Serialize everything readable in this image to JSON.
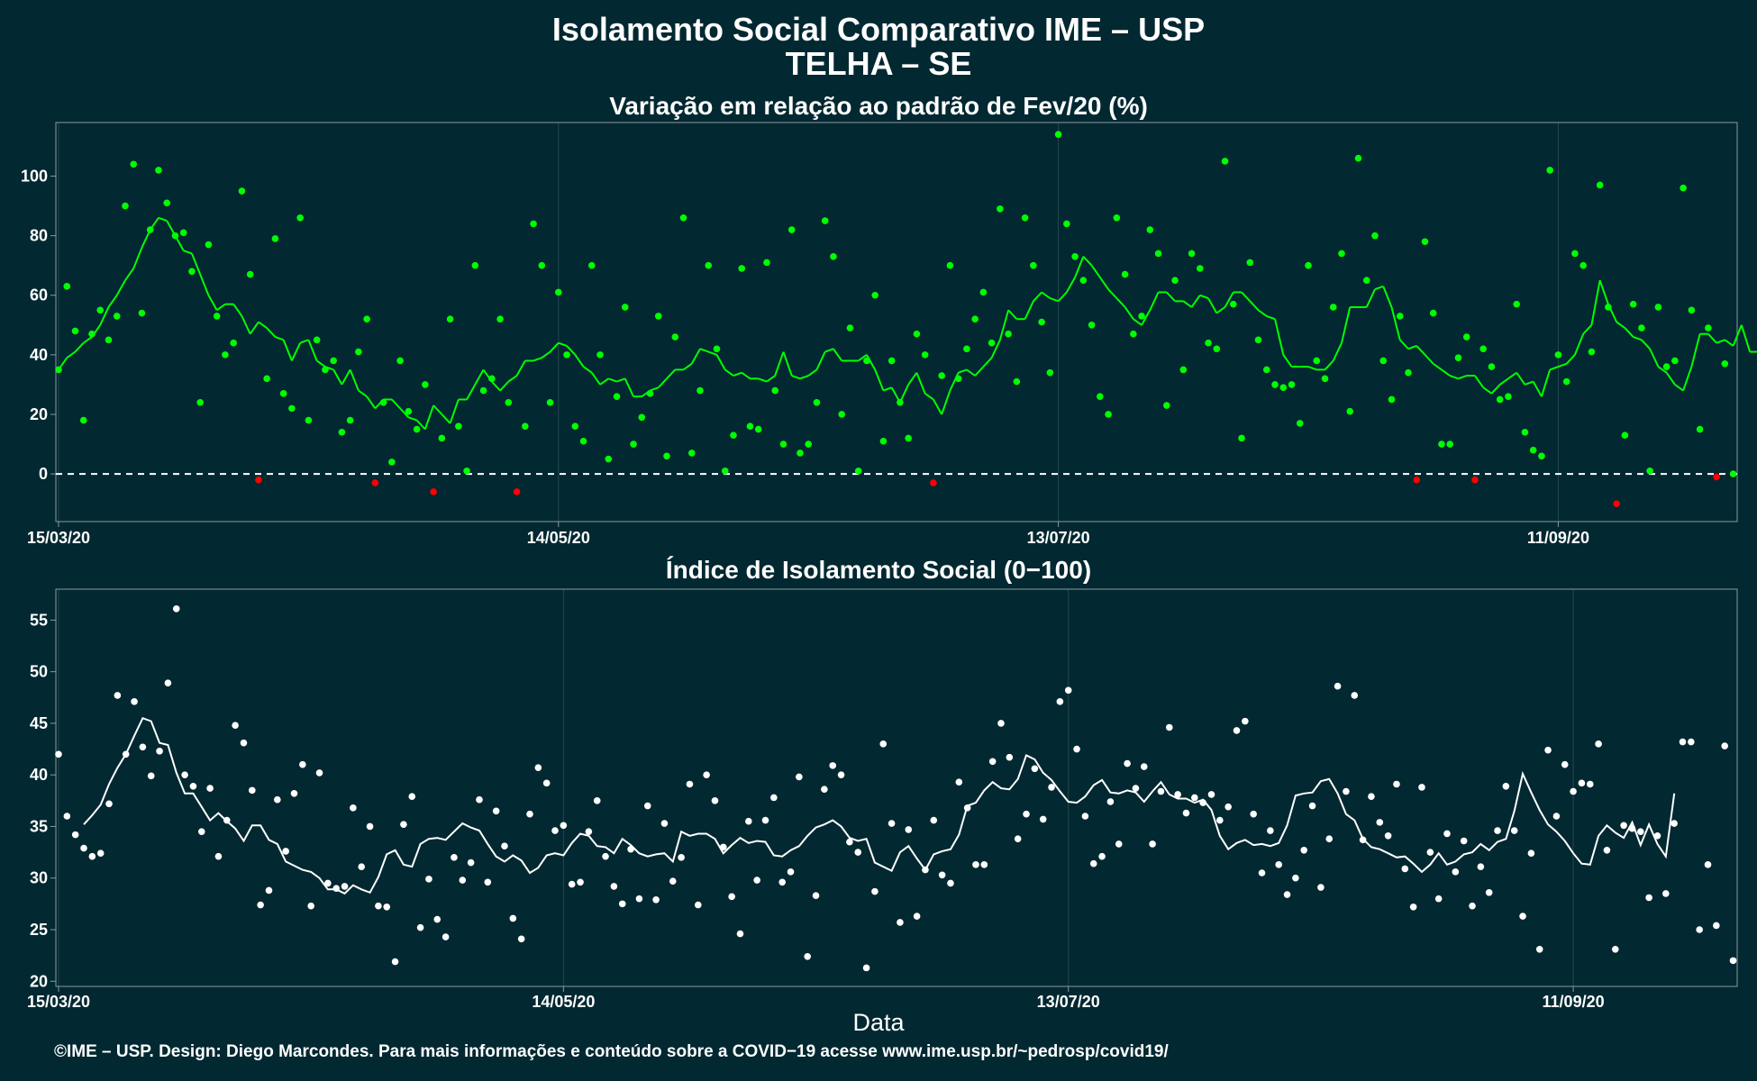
{
  "title_line1": "Isolamento Social Comparativo IME – USP",
  "title_line2": "TELHA – SE",
  "xlabel": "Data",
  "footer": "©IME – USP. Design: Diego Marcondes. Para mais informações e conteúdo sobre a COVID−19 acesse www.ime.usp.br/~pedrosp/covid19/",
  "colors": {
    "background": "#022831",
    "positive": "#00ff00",
    "negative": "#ff0000",
    "index": "#ffffff",
    "grid": "#27474f"
  },
  "chart_data": [
    {
      "type": "scatter",
      "title": "Variação em relação ao padrão de Fev/20 (%)",
      "x_start": "2020-03-15",
      "x_ticks": [
        "15/03/20",
        "14/05/20",
        "13/07/20",
        "11/09/20"
      ],
      "ylim": [
        -16,
        118
      ],
      "y_ticks": [
        0,
        20,
        40,
        60,
        80,
        100
      ],
      "reference_line": 0,
      "grid": true,
      "series": [
        {
          "values": [
            35,
            63,
            48,
            18,
            47,
            55,
            45,
            53,
            90,
            104,
            54,
            82,
            102,
            91,
            80,
            81,
            68,
            24,
            77,
            53,
            40,
            44,
            95,
            67,
            -2,
            32,
            79,
            27,
            22,
            86,
            18,
            45,
            35,
            38,
            14,
            18,
            41,
            52,
            -3,
            24,
            4,
            38,
            21,
            15,
            30,
            -6,
            12,
            52,
            16,
            1,
            70,
            28,
            32,
            52,
            24,
            -6,
            16,
            84,
            70,
            24,
            61,
            40,
            16,
            11,
            70,
            40,
            5,
            26,
            56,
            10,
            19,
            27,
            53,
            6,
            46,
            86,
            7,
            28,
            70,
            42,
            1,
            13,
            69,
            16,
            15,
            71,
            28,
            10,
            82,
            7,
            10,
            24,
            85,
            73,
            20,
            49,
            1,
            38,
            60,
            11,
            38,
            24,
            12,
            47,
            40,
            -3,
            33,
            70,
            32,
            42,
            52,
            61,
            44,
            89,
            47,
            31,
            86,
            70,
            51,
            34,
            114,
            84,
            73,
            65,
            50,
            26,
            20,
            86,
            67,
            47,
            53,
            82,
            74,
            23,
            65,
            35,
            74,
            69,
            44,
            42,
            105,
            57,
            12,
            71,
            45,
            35,
            30,
            29,
            30,
            17,
            70,
            38,
            32,
            56,
            74,
            21,
            106,
            65,
            80,
            38,
            25,
            53,
            34,
            -2,
            78,
            54,
            10,
            10,
            39,
            46,
            -2,
            42,
            36,
            25,
            26,
            57,
            14,
            8,
            6,
            102,
            40,
            31,
            74,
            70,
            41,
            97,
            56,
            -10,
            13,
            57,
            49,
            1,
            56,
            36,
            38,
            96,
            55,
            15,
            49,
            -1,
            37,
            0
          ]
        },
        {
          "values": [
            35,
            39,
            41,
            44,
            46,
            50,
            56,
            60,
            65,
            69,
            76,
            82,
            86,
            85,
            80,
            75,
            74,
            67,
            60,
            55,
            57,
            57,
            53,
            47,
            51,
            49,
            46,
            45,
            38,
            44,
            45,
            38,
            36,
            35,
            30,
            35,
            28,
            26,
            22,
            25,
            25,
            22,
            19,
            18,
            15,
            23,
            20,
            17,
            25,
            25,
            30,
            35,
            31,
            28,
            31,
            33,
            38,
            38,
            39,
            41,
            44,
            43,
            40,
            36,
            34,
            30,
            32,
            31,
            32,
            26,
            26,
            28,
            29,
            32,
            35,
            35,
            37,
            42,
            41,
            40,
            35,
            33,
            34,
            32,
            32,
            31,
            33,
            41,
            33,
            32,
            33,
            35,
            41,
            42,
            38,
            38,
            38,
            40,
            35,
            28,
            29,
            24,
            30,
            34,
            27,
            25,
            20,
            28,
            34,
            35,
            33,
            36,
            39,
            45,
            55,
            52,
            52,
            58,
            61,
            59,
            58,
            61,
            66,
            73,
            70,
            66,
            62,
            59,
            56,
            52,
            50,
            55,
            61,
            61,
            58,
            58,
            56,
            60,
            59,
            54,
            56,
            61,
            61,
            58,
            55,
            53,
            52,
            40,
            36,
            36,
            36,
            35,
            35,
            38,
            44,
            56,
            56,
            56,
            62,
            63,
            56,
            45,
            42,
            43,
            40,
            37,
            35,
            33,
            32,
            33,
            33,
            29,
            27,
            30,
            32,
            34,
            30,
            31,
            26,
            35,
            36,
            37,
            40,
            47,
            50,
            65,
            57,
            51,
            49,
            46,
            45,
            42,
            36,
            34,
            30,
            28,
            36,
            47,
            47,
            44,
            45,
            43,
            50,
            41,
            41,
            36
          ]
        }
      ]
    },
    {
      "type": "scatter",
      "title": "Índice de Isolamento Social (0−100)",
      "x_start": "2020-03-15",
      "x_ticks": [
        "15/03/20",
        "14/05/20",
        "13/07/20",
        "11/09/20"
      ],
      "ylim": [
        19.5,
        58
      ],
      "y_ticks": [
        20,
        25,
        30,
        35,
        40,
        45,
        50,
        55
      ],
      "grid": true,
      "series": [
        {
          "values": [
            42,
            36,
            34.2,
            32.9,
            32.1,
            32.4,
            37.2,
            47.7,
            42,
            47.1,
            42.7,
            39.9,
            42.3,
            48.9,
            56.1,
            40,
            38.9,
            34.5,
            38.7,
            32.1,
            35.6,
            44.8,
            43.1,
            38.5,
            27.4,
            28.8,
            37.6,
            32.6,
            38.2,
            41,
            27.3,
            40.2,
            29.5,
            29,
            29.2,
            36.8,
            31.1,
            35,
            27.3,
            27.2,
            21.9,
            35.2,
            37.9,
            25.2,
            29.9,
            26,
            24.3,
            32,
            29.8,
            31.5,
            37.6,
            29.6,
            36.5,
            33.1,
            26.1,
            24.1,
            36.2,
            40.7,
            39.2,
            34.6,
            35.1,
            29.4,
            29.6,
            34.5,
            37.5,
            32.1,
            29.2,
            27.5,
            32.8,
            28,
            37,
            27.9,
            35.3,
            29.7,
            32,
            39.1,
            27.4,
            40,
            37.5,
            33,
            28.2,
            24.6,
            35.5,
            29.8,
            35.6,
            37.8,
            29.6,
            30.6,
            39.8,
            22.4,
            28.3,
            38.6,
            40.9,
            40,
            33.5,
            32.5,
            21.3,
            28.7,
            43,
            35.3,
            25.7,
            34.7,
            26.3,
            30.8,
            35.6,
            30.3,
            29.5,
            39.3,
            36.8,
            31.3,
            31.3,
            41.3,
            45,
            41.7,
            33.8,
            36.2,
            40.6,
            35.7,
            38.8,
            47.1,
            48.2,
            42.5,
            36,
            31.4,
            32.1,
            37.4,
            33.3,
            41.1,
            38.7,
            40.8,
            33.3,
            38.4,
            44.6,
            38.1,
            36.3,
            37.8,
            37.3,
            38.1,
            35.6,
            36.9,
            44.3,
            45.2,
            36.2,
            30.5,
            34.6,
            31.3,
            28.4,
            30,
            32.7,
            37,
            29.1,
            33.8,
            48.6,
            38.4,
            47.7,
            33.7,
            37.9,
            35.4,
            34.1,
            39.1,
            30.9,
            27.2,
            38.8,
            32.5,
            28,
            34.3,
            30.6,
            33.6,
            27.3,
            31.1,
            28.6,
            34.6,
            38.9,
            34.6,
            26.3,
            32.4,
            23.1,
            42.4,
            36,
            41,
            38.4,
            39.2,
            39.1,
            43,
            32.7,
            23.1,
            35.1,
            34.8,
            34.5,
            28.1,
            34.1,
            28.5,
            35.3,
            43.2,
            43.2,
            25,
            31.3,
            25.4,
            42.8,
            22
          ]
        },
        {
          "values": [
            null,
            null,
            null,
            35.2,
            36.1,
            37.1,
            39.1,
            40.7,
            42,
            43.8,
            45.5,
            45.2,
            43.1,
            42.9,
            40.2,
            38.2,
            38.2,
            36.9,
            35.6,
            36.3,
            35.5,
            34.8,
            33.6,
            35.1,
            35.1,
            33.7,
            33.3,
            31.6,
            31.2,
            30.8,
            30.6,
            30,
            28.9,
            28.9,
            28.5,
            29.3,
            28.9,
            28.6,
            30.1,
            32.3,
            32.7,
            31.3,
            31.1,
            33.3,
            33.8,
            33.9,
            33.7,
            34.5,
            35.3,
            34.9,
            34.6,
            33.3,
            32.1,
            31.6,
            32.2,
            31.7,
            30.5,
            31,
            32.2,
            32.4,
            32.2,
            33.4,
            34.3,
            34.1,
            33.1,
            33,
            32.4,
            33.8,
            33.2,
            32.4,
            32.1,
            32.3,
            32.4,
            31.6,
            34.5,
            34.1,
            34.3,
            34.3,
            33.8,
            32.4,
            33.2,
            33.9,
            33.4,
            33.6,
            33.5,
            32.2,
            32.1,
            32.7,
            33.1,
            34.1,
            34.9,
            35.2,
            35.6,
            35,
            33.9,
            33.6,
            33.8,
            31.5,
            31.1,
            30.7,
            32.5,
            33.1,
            31.9,
            30.8,
            32.3,
            32.6,
            32.8,
            34.2,
            37,
            37.3,
            38.5,
            39.3,
            38.7,
            38.6,
            39.6,
            41.9,
            41.5,
            40.2,
            39.5,
            38.4,
            37.4,
            37.3,
            37.9,
            39,
            39.5,
            38.3,
            38.2,
            38.5,
            38.3,
            37.4,
            38.4,
            39.3,
            38.1,
            37.7,
            37.7,
            37.3,
            37.6,
            36.6,
            34.1,
            32.8,
            33.4,
            33.7,
            33.2,
            33.3,
            33.1,
            33.4,
            35.1,
            38,
            38.2,
            38.3,
            39.4,
            39.6,
            38.2,
            36.2,
            35.6,
            33.8,
            33,
            32.8,
            32.4,
            32,
            32.1,
            31.4,
            30.6,
            31.3,
            32.4,
            31.3,
            31.6,
            32.3,
            32.5,
            33.3,
            32.7,
            33.5,
            33.8,
            36.5,
            40.1,
            38.3,
            36.6,
            35.2,
            34.5,
            33.6,
            32.4,
            31.4,
            31.3,
            34.1,
            35.1,
            34.4,
            33.9,
            35.4,
            33.2,
            35.2,
            33.3,
            32.1,
            38.2
          ]
        }
      ]
    }
  ]
}
